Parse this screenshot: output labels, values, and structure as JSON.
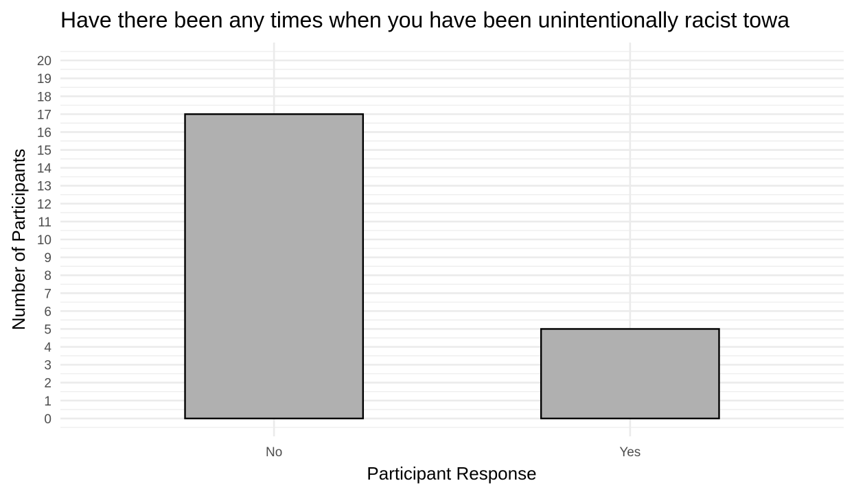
{
  "chart_data": {
    "type": "bar",
    "title": "Have there been any times when you have been unintentionally racist towa",
    "xlabel": "Participant Response",
    "ylabel": "Number of Participants",
    "categories": [
      "No",
      "Yes"
    ],
    "values": [
      17,
      5
    ],
    "ylim": [
      -1,
      21
    ],
    "yticks": [
      0,
      1,
      2,
      3,
      4,
      5,
      6,
      7,
      8,
      9,
      10,
      11,
      12,
      13,
      14,
      15,
      16,
      17,
      18,
      19,
      20
    ],
    "grid": true,
    "legend": "none",
    "colors": {
      "bar_fill": "#b0b0b0",
      "bar_stroke": "#000000",
      "grid": "#ebebeb"
    }
  }
}
